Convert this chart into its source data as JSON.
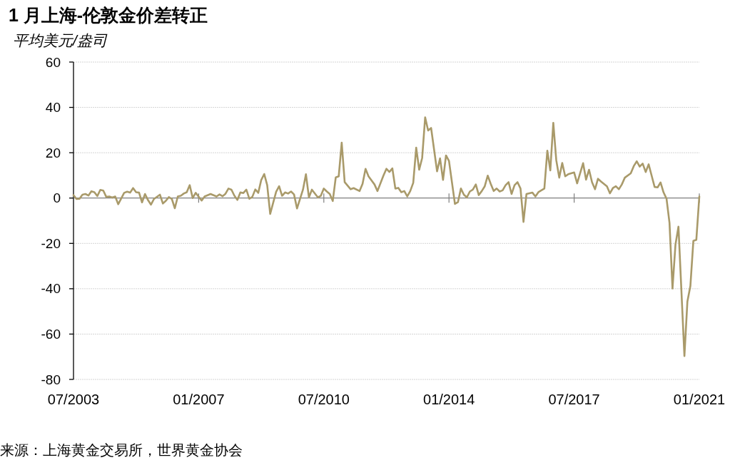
{
  "chart_data": {
    "type": "line",
    "title": "1 月上海-伦敦金价差转正",
    "ylabel": "平均美元/盎司",
    "annotations": [
      "来源：上海黄金交易所，世界黄金协会"
    ],
    "x": [
      "2003-07",
      "2003-08",
      "2003-09",
      "2003-10",
      "2003-11",
      "2003-12",
      "2004-01",
      "2004-02",
      "2004-03",
      "2004-04",
      "2004-05",
      "2004-06",
      "2004-07",
      "2004-08",
      "2004-09",
      "2004-10",
      "2004-12",
      "2005-01",
      "2005-02",
      "2005-03",
      "2005-04",
      "2005-05",
      "2005-06",
      "2005-07",
      "2005-08",
      "2005-09",
      "2005-10",
      "2005-12",
      "2006-01",
      "2006-02",
      "2006-03",
      "2006-04",
      "2006-05",
      "2006-06",
      "2006-07",
      "2006-08",
      "2006-09",
      "2006-10",
      "2006-11",
      "2006-12",
      "2007-02",
      "2007-03",
      "2007-05",
      "2007-07",
      "2007-08",
      "2007-09",
      "2007-10",
      "2007-11",
      "2007-12",
      "2008-01",
      "2008-02",
      "2008-03",
      "2008-04",
      "2008-05",
      "2008-06",
      "2008-07",
      "2008-08",
      "2008-09",
      "2008-10",
      "2008-11",
      "2008-12",
      "2009-01",
      "2009-03",
      "2009-04",
      "2009-05",
      "2009-06",
      "2009-07",
      "2009-08",
      "2009-09",
      "2009-10",
      "2009-12",
      "2010-01",
      "2010-02",
      "2010-03",
      "2010-05",
      "2010-06",
      "2010-07",
      "2010-08",
      "2010-09",
      "2010-10",
      "2010-11",
      "2010-12",
      "2011-01",
      "2011-02",
      "2011-04",
      "2011-05",
      "2011-07",
      "2011-08",
      "2011-09",
      "2011-10",
      "2011-12",
      "2012-01",
      "2012-03",
      "2012-04",
      "2012-05",
      "2012-06",
      "2012-07",
      "2012-08",
      "2012-09",
      "2012-10",
      "2012-11",
      "2012-12",
      "2013-01",
      "2013-02",
      "2013-03",
      "2013-04",
      "2013-05",
      "2013-06",
      "2013-07",
      "2013-09",
      "2013-10",
      "2013-11",
      "2013-12",
      "2014-01",
      "2014-03",
      "2014-04",
      "2014-05",
      "2014-06",
      "2014-07",
      "2014-08",
      "2014-09",
      "2014-10",
      "2014-11",
      "2014-12",
      "2015-01",
      "2015-02",
      "2015-03",
      "2015-04",
      "2015-05",
      "2015-06",
      "2015-07",
      "2015-08",
      "2015-09",
      "2015-10",
      "2015-11",
      "2015-12",
      "2016-01",
      "2016-02",
      "2016-03",
      "2016-05",
      "2016-06",
      "2016-07",
      "2016-09",
      "2016-10",
      "2016-11",
      "2016-12",
      "2017-01",
      "2017-02",
      "2017-03",
      "2017-04",
      "2017-05",
      "2017-07",
      "2017-08",
      "2017-10",
      "2017-11",
      "2017-12",
      "2018-01",
      "2018-02",
      "2018-03",
      "2018-04",
      "2018-06",
      "2018-07",
      "2018-08",
      "2018-09",
      "2018-10",
      "2018-11",
      "2018-12",
      "2019-02",
      "2019-03",
      "2019-04",
      "2019-05",
      "2019-06",
      "2019-07",
      "2019-08",
      "2019-09",
      "2019-10",
      "2019-11",
      "2019-12",
      "2020-01",
      "2020-02",
      "2020-03",
      "2020-04",
      "2020-05",
      "2020-06",
      "2020-08",
      "2020-09",
      "2020-10",
      "2020-11",
      "2020-12",
      "2021-01"
    ],
    "series": [
      {
        "color": "#a99a6a",
        "values": [
          1.3,
          -0.4,
          -0.3,
          1.5,
          1.8,
          1.1,
          3.0,
          2.6,
          0.9,
          3.6,
          3.3,
          0.5,
          0.7,
          0.2,
          0.7,
          -2.7,
          2.3,
          2.8,
          2.4,
          4.4,
          2.6,
          2.4,
          -1.9,
          1.8,
          -0.9,
          -2.9,
          -0.4,
          1.5,
          -2.4,
          -1.2,
          0.4,
          -0.4,
          -4.5,
          0.7,
          1.0,
          2.0,
          2.6,
          5.7,
          0.0,
          2.3,
          -1.1,
          0.7,
          1.8,
          0.7,
          1.6,
          0.8,
          1.9,
          4.2,
          3.7,
          1.0,
          -0.8,
          2.5,
          2.2,
          3.7,
          -0.3,
          0.5,
          3.8,
          2.3,
          8.0,
          10.6,
          5.7,
          -7.0,
          2.8,
          5.2,
          1.0,
          2.5,
          2.0,
          2.9,
          1.6,
          -4.6,
          3.7,
          10.5,
          0.3,
          3.7,
          0.3,
          1.0,
          4.2,
          2.9,
          1.8,
          -1.3,
          9.1,
          9.6,
          24.4,
          7.0,
          3.9,
          4.4,
          3.1,
          6.3,
          12.9,
          9.6,
          6.0,
          3.1,
          9.9,
          12.9,
          11.5,
          13.1,
          4.2,
          4.5,
          2.6,
          3.1,
          0.7,
          3.1,
          6.7,
          22.2,
          12.5,
          17.7,
          35.6,
          29.8,
          30.9,
          11.8,
          17.5,
          8.0,
          18.8,
          16.4,
          -2.6,
          -1.8,
          4.2,
          1.5,
          0.3,
          2.9,
          3.7,
          6.0,
          1.3,
          3.1,
          5.2,
          9.9,
          6.3,
          3.1,
          4.2,
          2.9,
          3.4,
          5.7,
          7.0,
          1.8,
          5.7,
          7.0,
          4.2,
          -10.5,
          1.8,
          2.4,
          0.7,
          2.6,
          4.2,
          20.9,
          12.2,
          33.2,
          16.7,
          9.0,
          15.5,
          9.6,
          10.5,
          11.3,
          6.5,
          15.4,
          8.1,
          12.5,
          7.0,
          3.9,
          8.5,
          7.3,
          5.2,
          2.1,
          4.4,
          5.2,
          3.9,
          6.0,
          9.0,
          10.9,
          14.1,
          16.2,
          13.9,
          15.2,
          11.5,
          14.9,
          9.9,
          4.9,
          4.7,
          6.9,
          2.5,
          -0.3,
          -11.0,
          -39.9,
          -20.5,
          -12.6,
          -69.7,
          -45.6,
          -38.8,
          -18.9,
          -18.4,
          0.7
        ]
      }
    ],
    "xlim": [
      "2003-07",
      "2021-01"
    ],
    "ylim": [
      -80,
      60
    ],
    "yticks": [
      -80,
      -60,
      -40,
      -20,
      0,
      20,
      40,
      60
    ],
    "xticks": [
      {
        "value": "2003-07",
        "label": "07/2003"
      },
      {
        "value": "2007-01",
        "label": "01/2007"
      },
      {
        "value": "2010-07",
        "label": "07/2010"
      },
      {
        "value": "2014-01",
        "label": "01/2014"
      },
      {
        "value": "2017-07",
        "label": "07/2017"
      },
      {
        "value": "2021-01",
        "label": "01/2021"
      }
    ],
    "grid": "y",
    "line_style": "solid"
  }
}
